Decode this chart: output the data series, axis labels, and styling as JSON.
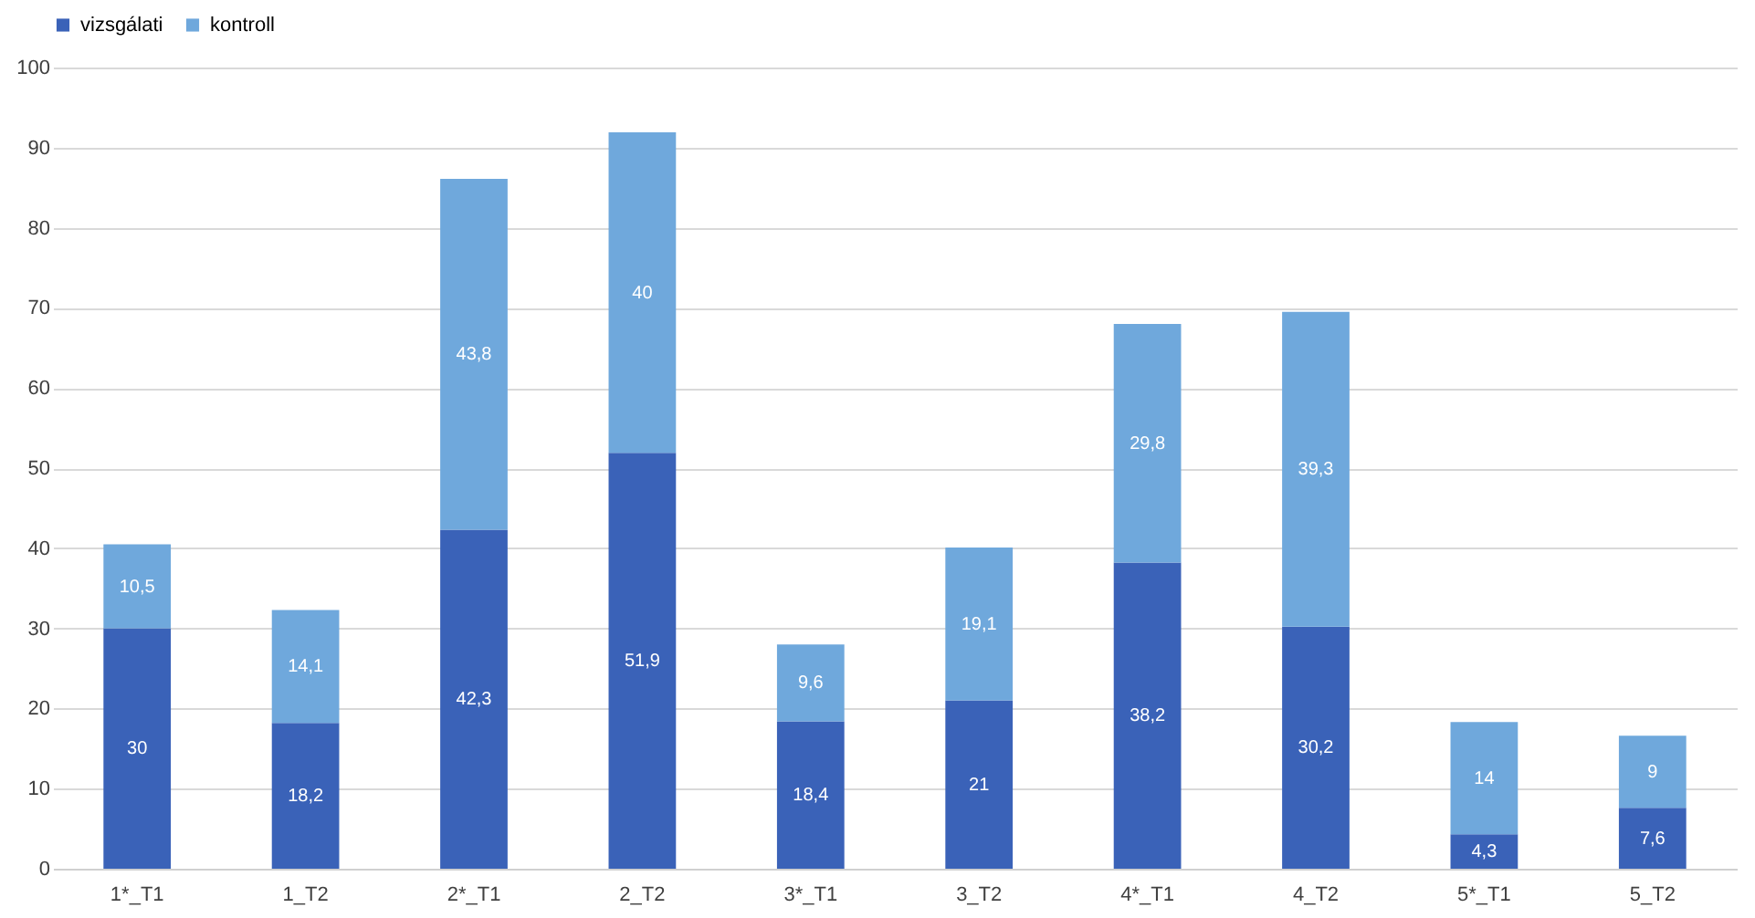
{
  "chart_data": {
    "type": "bar",
    "stacked": true,
    "categories": [
      "1*_T1",
      "1_T2",
      "2*_T1",
      "2_T2",
      "3*_T1",
      "3_T2",
      "4*_T1",
      "4_T2",
      "5*_T1",
      "5_T2"
    ],
    "series": [
      {
        "name": "vizsgálati",
        "color": "#3a62b8",
        "values": [
          30,
          18.2,
          42.3,
          51.9,
          18.4,
          21,
          38.2,
          30.2,
          4.3,
          7.6
        ],
        "value_labels": [
          "30",
          "18,2",
          "42,3",
          "51,9",
          "18,4",
          "21",
          "38,2",
          "30,2",
          "4,3",
          "7,6"
        ]
      },
      {
        "name": "kontroll",
        "color": "#6fa8dc",
        "values": [
          10.5,
          14.1,
          43.8,
          40,
          9.6,
          19.1,
          29.8,
          39.3,
          14,
          9
        ],
        "value_labels": [
          "10,5",
          "14,1",
          "43,8",
          "40",
          "9,6",
          "19,1",
          "29,8",
          "39,3",
          "14",
          "9"
        ]
      }
    ],
    "ylim": [
      0,
      100
    ],
    "yticks": [
      0,
      10,
      20,
      30,
      40,
      50,
      60,
      70,
      80,
      90,
      100
    ],
    "grid": "y",
    "legend": "top"
  }
}
